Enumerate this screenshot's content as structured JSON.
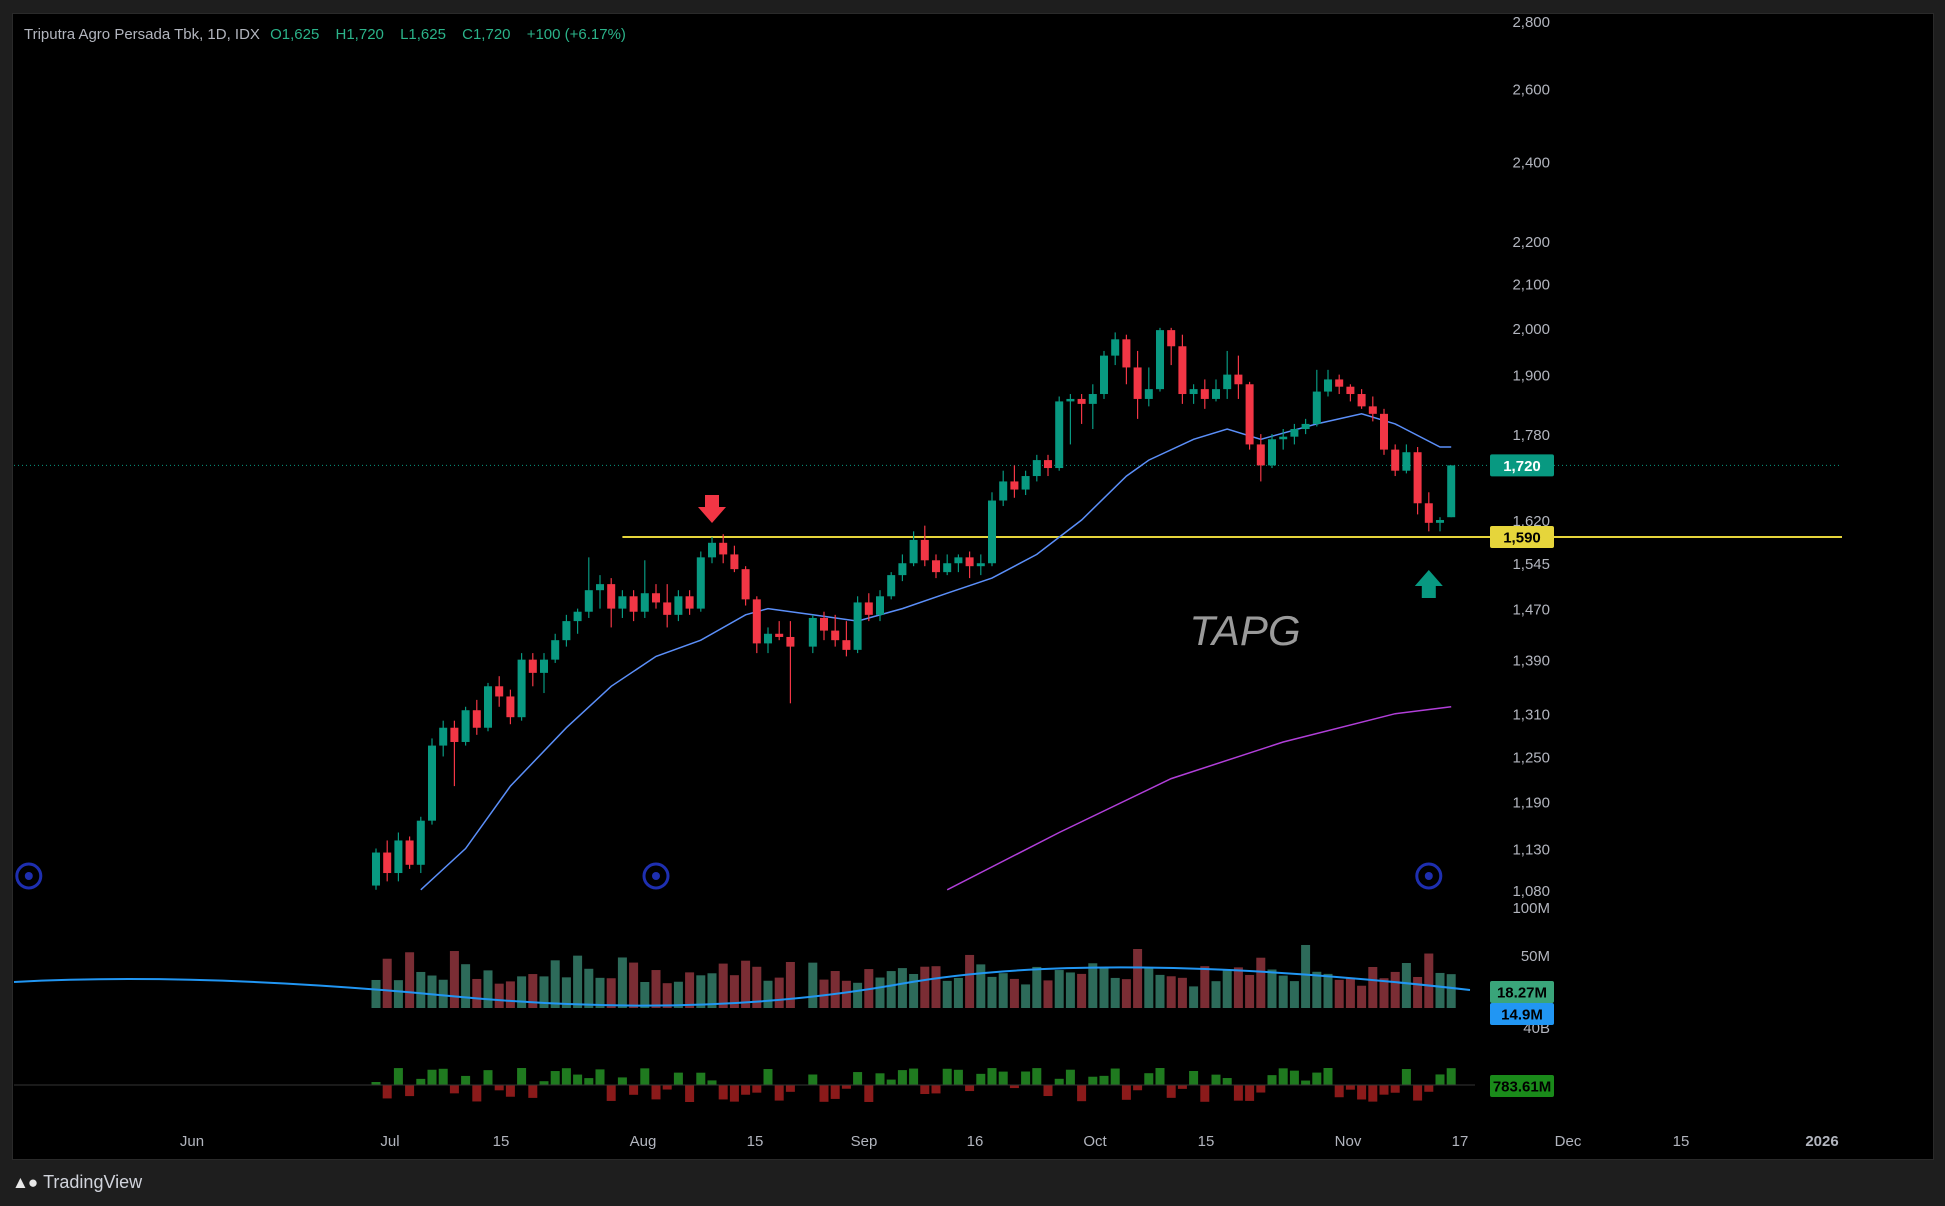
{
  "app": {
    "brand": "TradingView"
  },
  "legend": {
    "symbol": "Triputra Agro Persada Tbk, 1D, IDX",
    "open_label": "O",
    "open": "1,625",
    "high_label": "H",
    "high": "1,720",
    "low_label": "L",
    "low": "1,625",
    "close_label": "C",
    "close": "1,720",
    "change": "+100 (+6.17%)"
  },
  "colors": {
    "up": "#089981",
    "down": "#f23645",
    "ma_short": "#5b8ff9",
    "ma_long": "#b13fd9",
    "level": "#e6d53b",
    "vol_ma": "#2196f3",
    "flow_up": "#1f7a1f",
    "flow_down": "#8b1a1a"
  },
  "chart_data": {
    "type": "candlestick",
    "watermark": "TAPG",
    "scale": "log",
    "ylim": [
      1075,
      2800
    ],
    "y_ticks": [
      "2,800",
      "2,600",
      "2,400",
      "2,200",
      "2,100",
      "2,000",
      "1,900",
      "1,780",
      "1,620",
      "1,545",
      "1,470",
      "1,390",
      "1,310",
      "1,250",
      "1,190",
      "1,130",
      "1,080"
    ],
    "x_ticks": [
      "Jun",
      "Jul",
      "15",
      "Aug",
      "15",
      "Sep",
      "16",
      "Oct",
      "15",
      "Nov",
      "17",
      "Dec",
      "15",
      "2026"
    ],
    "last_price_label": "1,720",
    "horizontal_level": {
      "price": 1590,
      "label": "1,590",
      "start": "2025-08-07"
    },
    "markers": [
      {
        "type": "arrow-down",
        "date": "2025-08-19"
      },
      {
        "type": "arrow-up",
        "date": "2025-11-17"
      },
      {
        "type": "event-circle",
        "date": "2025-05-26"
      },
      {
        "type": "event-circle",
        "date": "2025-08-12"
      },
      {
        "type": "event-circle",
        "date": "2025-11-17"
      }
    ],
    "ohlc_columns": [
      "date",
      "open",
      "high",
      "low",
      "close"
    ],
    "ohlc": [
      [
        "2025-07-08",
        1085,
        1130,
        1080,
        1125
      ],
      [
        "2025-07-09",
        1125,
        1140,
        1090,
        1100
      ],
      [
        "2025-07-10",
        1100,
        1150,
        1090,
        1140
      ],
      [
        "2025-07-11",
        1140,
        1145,
        1105,
        1110
      ],
      [
        "2025-07-14",
        1110,
        1170,
        1100,
        1165
      ],
      [
        "2025-07-15",
        1165,
        1275,
        1160,
        1265
      ],
      [
        "2025-07-16",
        1265,
        1300,
        1250,
        1290
      ],
      [
        "2025-07-17",
        1290,
        1300,
        1210,
        1270
      ],
      [
        "2025-07-18",
        1270,
        1320,
        1265,
        1315
      ],
      [
        "2025-07-21",
        1315,
        1330,
        1280,
        1290
      ],
      [
        "2025-07-22",
        1290,
        1355,
        1285,
        1350
      ],
      [
        "2025-07-23",
        1350,
        1365,
        1320,
        1335
      ],
      [
        "2025-07-24",
        1335,
        1345,
        1295,
        1305
      ],
      [
        "2025-07-25",
        1305,
        1400,
        1300,
        1390
      ],
      [
        "2025-07-28",
        1390,
        1400,
        1350,
        1370
      ],
      [
        "2025-07-29",
        1370,
        1400,
        1340,
        1390
      ],
      [
        "2025-07-30",
        1390,
        1430,
        1385,
        1420
      ],
      [
        "2025-07-31",
        1420,
        1460,
        1410,
        1450
      ],
      [
        "2025-08-01",
        1450,
        1470,
        1430,
        1465
      ],
      [
        "2025-08-04",
        1465,
        1555,
        1455,
        1500
      ],
      [
        "2025-08-05",
        1500,
        1525,
        1470,
        1510
      ],
      [
        "2025-08-06",
        1510,
        1520,
        1440,
        1470
      ],
      [
        "2025-08-07",
        1470,
        1500,
        1455,
        1490
      ],
      [
        "2025-08-08",
        1490,
        1500,
        1450,
        1465
      ],
      [
        "2025-08-11",
        1465,
        1550,
        1455,
        1495
      ],
      [
        "2025-08-12",
        1495,
        1510,
        1470,
        1480
      ],
      [
        "2025-08-13",
        1480,
        1510,
        1440,
        1460
      ],
      [
        "2025-08-14",
        1460,
        1500,
        1450,
        1490
      ],
      [
        "2025-08-15",
        1490,
        1500,
        1460,
        1470
      ],
      [
        "2025-08-18",
        1470,
        1565,
        1465,
        1555
      ],
      [
        "2025-08-19",
        1555,
        1590,
        1545,
        1580
      ],
      [
        "2025-08-20",
        1580,
        1595,
        1545,
        1560
      ],
      [
        "2025-08-21",
        1560,
        1575,
        1530,
        1535
      ],
      [
        "2025-08-22",
        1535,
        1540,
        1475,
        1485
      ],
      [
        "2025-08-25",
        1485,
        1490,
        1400,
        1415
      ],
      [
        "2025-08-26",
        1415,
        1440,
        1400,
        1430
      ],
      [
        "2025-08-27",
        1430,
        1450,
        1420,
        1425
      ],
      [
        "2025-08-28",
        1425,
        1450,
        1325,
        1410
      ],
      [
        "2025-09-01",
        1410,
        1460,
        1400,
        1455
      ],
      [
        "2025-09-02",
        1455,
        1465,
        1420,
        1435
      ],
      [
        "2025-09-03",
        1435,
        1460,
        1410,
        1420
      ],
      [
        "2025-09-04",
        1420,
        1450,
        1395,
        1405
      ],
      [
        "2025-09-05",
        1405,
        1490,
        1400,
        1480
      ],
      [
        "2025-09-08",
        1480,
        1495,
        1450,
        1460
      ],
      [
        "2025-09-09",
        1460,
        1500,
        1450,
        1490
      ],
      [
        "2025-09-10",
        1490,
        1530,
        1485,
        1525
      ],
      [
        "2025-09-11",
        1525,
        1560,
        1515,
        1545
      ],
      [
        "2025-09-12",
        1545,
        1600,
        1540,
        1585
      ],
      [
        "2025-09-15",
        1585,
        1610,
        1540,
        1550
      ],
      [
        "2025-09-16",
        1550,
        1560,
        1520,
        1530
      ],
      [
        "2025-09-17",
        1530,
        1560,
        1525,
        1545
      ],
      [
        "2025-09-18",
        1545,
        1560,
        1530,
        1555
      ],
      [
        "2025-09-19",
        1555,
        1565,
        1520,
        1540
      ],
      [
        "2025-09-22",
        1540,
        1560,
        1525,
        1545
      ],
      [
        "2025-09-23",
        1545,
        1670,
        1540,
        1655
      ],
      [
        "2025-09-24",
        1655,
        1710,
        1645,
        1690
      ],
      [
        "2025-09-25",
        1690,
        1720,
        1660,
        1675
      ],
      [
        "2025-09-26",
        1675,
        1710,
        1665,
        1700
      ],
      [
        "2025-09-29",
        1700,
        1740,
        1690,
        1730
      ],
      [
        "2025-09-30",
        1730,
        1740,
        1700,
        1715
      ],
      [
        "2025-10-01",
        1715,
        1855,
        1710,
        1845
      ],
      [
        "2025-10-02",
        1845,
        1860,
        1760,
        1850
      ],
      [
        "2025-10-03",
        1850,
        1860,
        1800,
        1840
      ],
      [
        "2025-10-06",
        1840,
        1880,
        1790,
        1860
      ],
      [
        "2025-10-07",
        1860,
        1950,
        1850,
        1940
      ],
      [
        "2025-10-08",
        1940,
        1990,
        1920,
        1975
      ],
      [
        "2025-10-09",
        1975,
        1985,
        1880,
        1915
      ],
      [
        "2025-10-10",
        1915,
        1950,
        1810,
        1850
      ],
      [
        "2025-10-13",
        1850,
        1915,
        1835,
        1870
      ],
      [
        "2025-10-14",
        1870,
        2000,
        1865,
        1995
      ],
      [
        "2025-10-15",
        1995,
        2000,
        1920,
        1960
      ],
      [
        "2025-10-16",
        1960,
        1985,
        1840,
        1860
      ],
      [
        "2025-10-17",
        1860,
        1880,
        1840,
        1870
      ],
      [
        "2025-10-20",
        1870,
        1890,
        1830,
        1850
      ],
      [
        "2025-10-21",
        1850,
        1890,
        1845,
        1870
      ],
      [
        "2025-10-22",
        1870,
        1950,
        1850,
        1900
      ],
      [
        "2025-10-23",
        1900,
        1940,
        1850,
        1880
      ],
      [
        "2025-10-24",
        1880,
        1885,
        1750,
        1760
      ],
      [
        "2025-10-27",
        1760,
        1780,
        1690,
        1720
      ],
      [
        "2025-10-28",
        1720,
        1780,
        1715,
        1770
      ],
      [
        "2025-10-29",
        1770,
        1790,
        1750,
        1775
      ],
      [
        "2025-10-30",
        1775,
        1800,
        1760,
        1790
      ],
      [
        "2025-10-31",
        1790,
        1810,
        1780,
        1800
      ],
      [
        "2025-11-03",
        1800,
        1910,
        1795,
        1865
      ],
      [
        "2025-11-04",
        1865,
        1910,
        1855,
        1890
      ],
      [
        "2025-11-05",
        1890,
        1900,
        1860,
        1875
      ],
      [
        "2025-11-06",
        1875,
        1880,
        1845,
        1860
      ],
      [
        "2025-11-07",
        1860,
        1870,
        1830,
        1835
      ],
      [
        "2025-11-10",
        1835,
        1855,
        1805,
        1820
      ],
      [
        "2025-11-11",
        1820,
        1830,
        1740,
        1750
      ],
      [
        "2025-11-12",
        1750,
        1760,
        1700,
        1710
      ],
      [
        "2025-11-13",
        1710,
        1760,
        1705,
        1745
      ],
      [
        "2025-11-14",
        1745,
        1755,
        1630,
        1650
      ],
      [
        "2025-11-17",
        1650,
        1670,
        1600,
        1615
      ],
      [
        "2025-11-18",
        1615,
        1625,
        1600,
        1620
      ],
      [
        "2025-11-19",
        1625,
        1720,
        1625,
        1720
      ]
    ],
    "moving_averages": [
      {
        "color": "ma_short",
        "points": [
          [
            "2025-07-14",
            1080
          ],
          [
            "2025-07-18",
            1130
          ],
          [
            "2025-07-24",
            1210
          ],
          [
            "2025-07-31",
            1290
          ],
          [
            "2025-08-06",
            1350
          ],
          [
            "2025-08-12",
            1395
          ],
          [
            "2025-08-18",
            1420
          ],
          [
            "2025-08-22",
            1460
          ],
          [
            "2025-08-26",
            1470
          ],
          [
            "2025-09-01",
            1460
          ],
          [
            "2025-09-05",
            1450
          ],
          [
            "2025-09-11",
            1470
          ],
          [
            "2025-09-17",
            1495
          ],
          [
            "2025-09-23",
            1520
          ],
          [
            "2025-09-29",
            1560
          ],
          [
            "2025-10-03",
            1620
          ],
          [
            "2025-10-09",
            1700
          ],
          [
            "2025-10-13",
            1730
          ],
          [
            "2025-10-17",
            1770
          ],
          [
            "2025-10-22",
            1790
          ],
          [
            "2025-10-27",
            1770
          ],
          [
            "2025-11-03",
            1800
          ],
          [
            "2025-11-07",
            1820
          ],
          [
            "2025-11-12",
            1800
          ],
          [
            "2025-11-18",
            1755
          ],
          [
            "2025-11-19",
            1755
          ]
        ]
      },
      {
        "color": "ma_long",
        "points": [
          [
            "2025-09-17",
            1080
          ],
          [
            "2025-10-01",
            1150
          ],
          [
            "2025-10-15",
            1220
          ],
          [
            "2025-10-29",
            1270
          ],
          [
            "2025-11-12",
            1310
          ],
          [
            "2025-11-19",
            1320
          ]
        ]
      }
    ],
    "volume": {
      "labels": [
        "100M",
        "50M",
        "40B"
      ],
      "last_volume": "18.27M",
      "volume_ma": "14.9M",
      "max": 100
    },
    "flow": {
      "last_value": "783.61M"
    }
  }
}
